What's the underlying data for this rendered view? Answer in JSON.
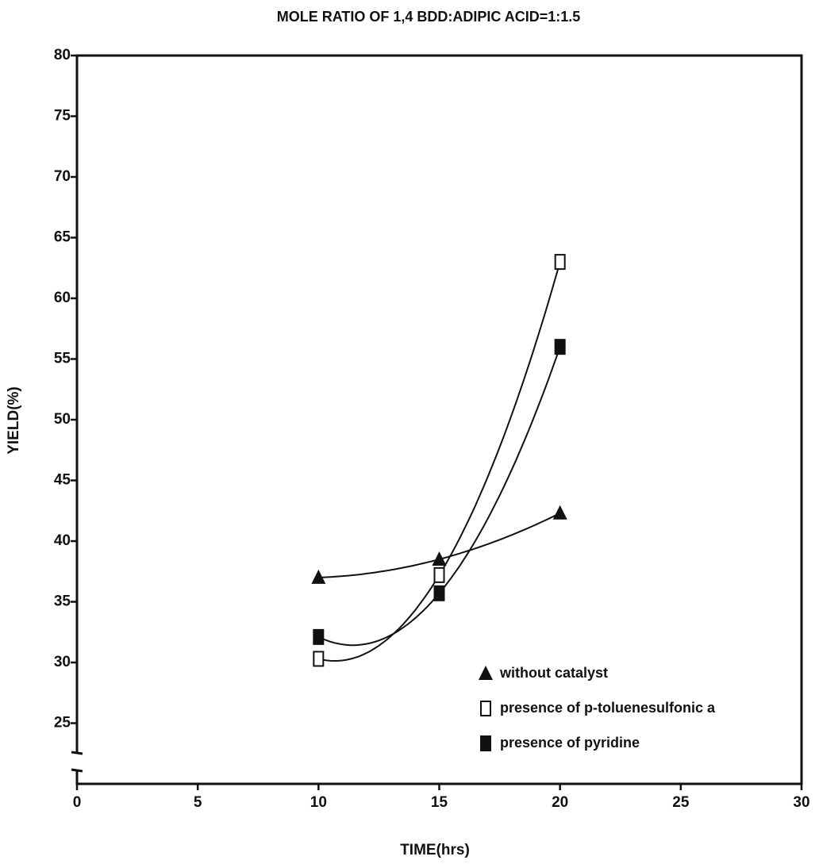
{
  "chart_data": {
    "type": "scatter",
    "title": "MOLE RATIO OF 1,4 BDD:ADIPIC ACID=1:1.5",
    "xlabel": "TIME(hrs)",
    "ylabel": "YIELD(%)",
    "x": [
      10,
      15,
      20
    ],
    "series": [
      {
        "name": "without catalyst",
        "color": "#111111",
        "marker": "triangle",
        "values": [
          37,
          38.5,
          42.3
        ]
      },
      {
        "name": "presence of p-toluenesulfonic a",
        "color": "#111111",
        "marker": "square-open",
        "values": [
          30.3,
          37.2,
          63
        ]
      },
      {
        "name": "presence of pyridine",
        "color": "#111111",
        "marker": "square",
        "values": [
          32.1,
          35.7,
          56
        ]
      }
    ],
    "xlim": [
      0,
      30
    ],
    "xticks": [
      0,
      5,
      10,
      15,
      20,
      25,
      30
    ],
    "ylim": [
      20,
      80
    ],
    "yticks": [
      25,
      30,
      35,
      40,
      45,
      50,
      55,
      60,
      65,
      70,
      75,
      80
    ],
    "legend": "lower right",
    "grid": false
  }
}
